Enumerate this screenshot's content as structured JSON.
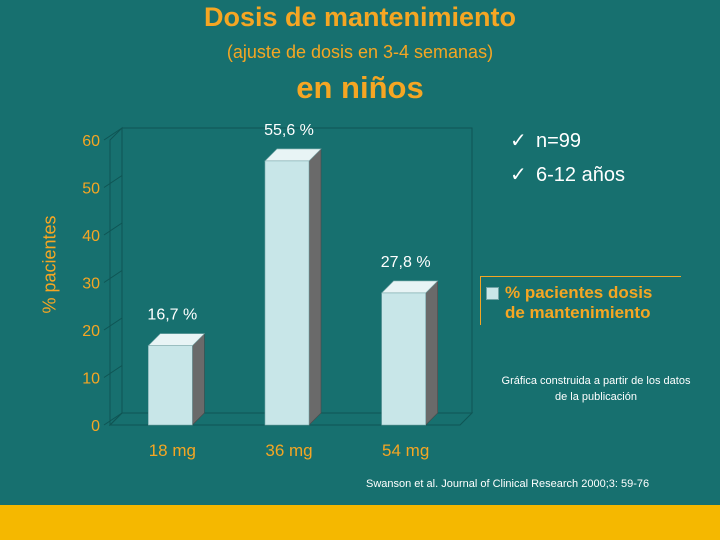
{
  "title": {
    "line1": "Dosis de mantenimiento",
    "line2": "(ajuste de dosis en 3-4 semanas)",
    "line3": "en niños"
  },
  "bullets": [
    {
      "icon": "check-icon",
      "mark": "✓",
      "text": "n=99"
    },
    {
      "icon": "check-icon",
      "mark": "✓",
      "text": "6-12 años"
    }
  ],
  "legend": {
    "line1": "% pacientes dosis",
    "line2": "de mantenimiento"
  },
  "note": "Gráfica construida a partir de los datos de la publicación",
  "source": "Swanson et al. Journal of Clinical Research 2000;3: 59-76",
  "colors": {
    "background": "#17706f",
    "accent": "#f5a623",
    "bar_front": "#c8e6e8",
    "bar_side": "#6a6a6a",
    "footer": "#f5b800"
  },
  "chart_data": {
    "type": "bar",
    "categories": [
      "18 mg",
      "36 mg",
      "54 mg"
    ],
    "series": [
      {
        "name": "% pacientes dosis de mantenimiento",
        "values": [
          16.7,
          55.6,
          27.8
        ]
      }
    ],
    "data_labels": [
      "16,7 %",
      "55,6 %",
      "27,8 %"
    ],
    "ylabel": "% pacientes",
    "yticks": [
      0,
      10,
      20,
      30,
      40,
      50,
      60
    ],
    "ylim": [
      0,
      60
    ],
    "legend_position": "right",
    "grid": false,
    "style": "3d"
  }
}
